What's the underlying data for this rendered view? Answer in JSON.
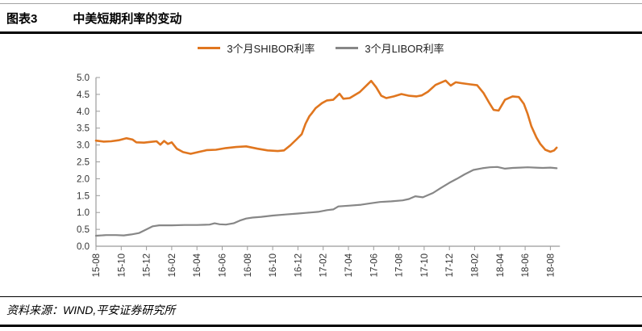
{
  "header": {
    "figure_label": "图表3",
    "title": "中美短期利率的变动"
  },
  "footer": {
    "source": "资料来源：WIND,平安证券研究所"
  },
  "colors": {
    "shibor_orange": "#E0761F",
    "libor_gray": "#878787",
    "axis": "#9b9b9b",
    "tick_label": "#333333"
  },
  "chart_data": {
    "type": "line",
    "title": "中美短期利率的变动",
    "grid": false,
    "legend_position": "top-center",
    "x_tick_labels": [
      "15-08",
      "15-10",
      "15-12",
      "16-02",
      "16-04",
      "16-06",
      "16-08",
      "16-10",
      "16-12",
      "17-02",
      "17-04",
      "17-06",
      "17-08",
      "17-10",
      "17-12",
      "18-02",
      "18-04",
      "18-06",
      "18-08"
    ],
    "x_months_per_tick": 2,
    "x_range_months": [
      0,
      36.5
    ],
    "ylim": [
      0,
      5
    ],
    "y_tick_step": 0.5,
    "y_tick_labels": [
      "0.0",
      "0.5",
      "1.0",
      "1.5",
      "2.0",
      "2.5",
      "3.0",
      "3.5",
      "4.0",
      "4.5",
      "5.0"
    ],
    "series": [
      {
        "name": "3个月SHIBOR利率",
        "color": "#E0761F",
        "points": [
          [
            0,
            3.13
          ],
          [
            0.6,
            3.1
          ],
          [
            1.2,
            3.11
          ],
          [
            1.8,
            3.14
          ],
          [
            2.4,
            3.2
          ],
          [
            2.9,
            3.16
          ],
          [
            3.2,
            3.08
          ],
          [
            3.8,
            3.07
          ],
          [
            4.3,
            3.09
          ],
          [
            4.8,
            3.11
          ],
          [
            5.1,
            3.01
          ],
          [
            5.4,
            3.12
          ],
          [
            5.7,
            3.03
          ],
          [
            6.0,
            3.08
          ],
          [
            6.4,
            2.89
          ],
          [
            6.9,
            2.79
          ],
          [
            7.5,
            2.74
          ],
          [
            8.2,
            2.8
          ],
          [
            8.8,
            2.85
          ],
          [
            9.5,
            2.86
          ],
          [
            10.3,
            2.91
          ],
          [
            11.1,
            2.94
          ],
          [
            11.9,
            2.96
          ],
          [
            12.8,
            2.89
          ],
          [
            13.6,
            2.84
          ],
          [
            14.4,
            2.82
          ],
          [
            14.9,
            2.84
          ],
          [
            15.4,
            2.99
          ],
          [
            15.9,
            3.17
          ],
          [
            16.3,
            3.32
          ],
          [
            16.6,
            3.63
          ],
          [
            16.9,
            3.85
          ],
          [
            17.1,
            3.94
          ],
          [
            17.4,
            4.09
          ],
          [
            17.9,
            4.24
          ],
          [
            18.3,
            4.32
          ],
          [
            18.8,
            4.34
          ],
          [
            19.3,
            4.52
          ],
          [
            19.6,
            4.37
          ],
          [
            20.1,
            4.39
          ],
          [
            20.9,
            4.57
          ],
          [
            21.5,
            4.79
          ],
          [
            21.8,
            4.9
          ],
          [
            22.2,
            4.71
          ],
          [
            22.6,
            4.46
          ],
          [
            23.0,
            4.39
          ],
          [
            23.6,
            4.44
          ],
          [
            24.2,
            4.51
          ],
          [
            24.8,
            4.46
          ],
          [
            25.4,
            4.44
          ],
          [
            25.8,
            4.47
          ],
          [
            26.3,
            4.58
          ],
          [
            26.9,
            4.78
          ],
          [
            27.7,
            4.91
          ],
          [
            28.1,
            4.76
          ],
          [
            28.5,
            4.86
          ],
          [
            29.0,
            4.83
          ],
          [
            29.6,
            4.8
          ],
          [
            30.2,
            4.77
          ],
          [
            30.7,
            4.54
          ],
          [
            31.2,
            4.22
          ],
          [
            31.5,
            4.04
          ],
          [
            31.9,
            4.02
          ],
          [
            32.4,
            4.34
          ],
          [
            33.0,
            4.44
          ],
          [
            33.5,
            4.42
          ],
          [
            33.9,
            4.22
          ],
          [
            34.2,
            3.92
          ],
          [
            34.5,
            3.55
          ],
          [
            34.9,
            3.22
          ],
          [
            35.2,
            3.03
          ],
          [
            35.6,
            2.86
          ],
          [
            36.0,
            2.8
          ],
          [
            36.3,
            2.84
          ],
          [
            36.5,
            2.92
          ]
        ]
      },
      {
        "name": "3个月LIBOR利率",
        "color": "#878787",
        "points": [
          [
            0,
            0.31
          ],
          [
            0.8,
            0.33
          ],
          [
            1.6,
            0.33
          ],
          [
            2.2,
            0.32
          ],
          [
            2.8,
            0.35
          ],
          [
            3.4,
            0.39
          ],
          [
            4.0,
            0.5
          ],
          [
            4.5,
            0.59
          ],
          [
            5.0,
            0.62
          ],
          [
            6.0,
            0.62
          ],
          [
            7.0,
            0.63
          ],
          [
            8.0,
            0.63
          ],
          [
            9.0,
            0.64
          ],
          [
            9.4,
            0.68
          ],
          [
            9.8,
            0.65
          ],
          [
            10.3,
            0.64
          ],
          [
            10.9,
            0.68
          ],
          [
            11.4,
            0.76
          ],
          [
            11.9,
            0.82
          ],
          [
            12.4,
            0.85
          ],
          [
            13.1,
            0.87
          ],
          [
            14.0,
            0.91
          ],
          [
            15.0,
            0.94
          ],
          [
            16.0,
            0.97
          ],
          [
            17.0,
            1.0
          ],
          [
            17.6,
            1.02
          ],
          [
            18.3,
            1.07
          ],
          [
            18.8,
            1.09
          ],
          [
            19.2,
            1.18
          ],
          [
            20.0,
            1.2
          ],
          [
            21.0,
            1.23
          ],
          [
            21.7,
            1.27
          ],
          [
            22.5,
            1.31
          ],
          [
            23.4,
            1.33
          ],
          [
            24.3,
            1.36
          ],
          [
            24.8,
            1.4
          ],
          [
            25.3,
            1.48
          ],
          [
            25.9,
            1.45
          ],
          [
            26.7,
            1.58
          ],
          [
            27.3,
            1.72
          ],
          [
            28.0,
            1.88
          ],
          [
            28.6,
            2.0
          ],
          [
            29.2,
            2.13
          ],
          [
            29.9,
            2.26
          ],
          [
            30.6,
            2.31
          ],
          [
            31.2,
            2.34
          ],
          [
            31.8,
            2.35
          ],
          [
            32.4,
            2.3
          ],
          [
            33.0,
            2.32
          ],
          [
            33.6,
            2.33
          ],
          [
            34.2,
            2.34
          ],
          [
            34.8,
            2.33
          ],
          [
            35.4,
            2.32
          ],
          [
            36.0,
            2.33
          ],
          [
            36.5,
            2.31
          ]
        ]
      }
    ]
  }
}
